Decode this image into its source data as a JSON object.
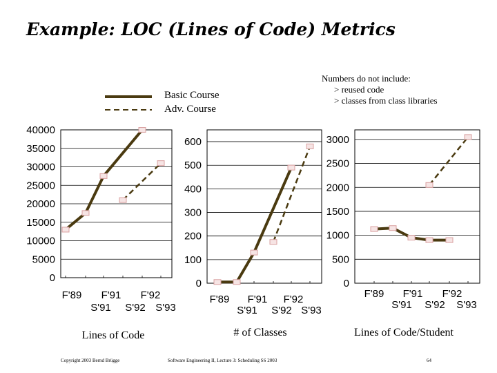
{
  "slide": {
    "title": "Example: LOC (Lines of Code) Metrics",
    "note": {
      "heading": "Numbers do not include:",
      "items": [
        "> reused code",
        "> classes from class libraries"
      ]
    },
    "legend": {
      "basic_label": "Basic Course",
      "adv_label": "Adv. Course"
    },
    "footer": {
      "left": "Copyright 2003 Bernd Brügge",
      "center": "Software Engineering II, Lecture 3: Scheduling SS 2003",
      "page": "64"
    }
  },
  "colors": {
    "series": "#4a3a10",
    "marker_stroke": "#d9a0a0",
    "marker_fill": "#f6e4e4",
    "grid": "#000000"
  },
  "chart_data": [
    {
      "type": "line",
      "title": "",
      "xlabel": "Lines of Code",
      "ylabel": "",
      "x_ticks_top": [
        "F'89",
        "F'91",
        "F'92"
      ],
      "x_ticks_bottom": [
        "S'91",
        "S'92",
        "S'93"
      ],
      "x_categories": [
        "F'89",
        "S'91",
        "F'91",
        "S'92",
        "F'92",
        "S'93"
      ],
      "y_ticks": [
        0,
        5000,
        10000,
        15000,
        20000,
        25000,
        30000,
        35000,
        40000
      ],
      "ylim": [
        0,
        40000
      ],
      "grid": true,
      "series": [
        {
          "name": "Basic Course",
          "style": "solid",
          "points": [
            [
              "F'89",
              13000
            ],
            [
              "S'91",
              17500
            ],
            [
              "F'91",
              27500
            ],
            [
              "F'92",
              40000
            ]
          ]
        },
        {
          "name": "Adv. Course",
          "style": "dashed",
          "points": [
            [
              "S'92",
              21000
            ],
            [
              "S'93",
              31000
            ]
          ]
        }
      ]
    },
    {
      "type": "line",
      "title": "",
      "xlabel": "# of Classes",
      "ylabel": "",
      "x_ticks_top": [
        "F'89",
        "F'91",
        "F'92"
      ],
      "x_ticks_bottom": [
        "S'91",
        "S'92",
        "S'93"
      ],
      "x_categories": [
        "F'89",
        "S'91",
        "F'91",
        "S'92",
        "F'92",
        "S'93"
      ],
      "y_ticks": [
        0,
        100,
        200,
        300,
        400,
        500,
        600
      ],
      "ylim": [
        0,
        650
      ],
      "grid": true,
      "series": [
        {
          "name": "Basic Course",
          "style": "solid",
          "points": [
            [
              "F'89",
              5
            ],
            [
              "S'91",
              5
            ],
            [
              "F'91",
              130
            ],
            [
              "F'92",
              490
            ]
          ]
        },
        {
          "name": "Adv. Course",
          "style": "dashed",
          "points": [
            [
              "S'92",
              175
            ],
            [
              "S'93",
              580
            ]
          ]
        }
      ]
    },
    {
      "type": "line",
      "title": "",
      "xlabel": "Lines of Code/Student",
      "ylabel": "",
      "x_ticks_top": [
        "F'89",
        "F'91",
        "F'92"
      ],
      "x_ticks_bottom": [
        "S'91",
        "S'92",
        "S'93"
      ],
      "x_categories": [
        "F'89",
        "S'91",
        "F'91",
        "S'92",
        "F'92",
        "S'93"
      ],
      "y_ticks": [
        0,
        500,
        1000,
        1500,
        2000,
        2500,
        3000
      ],
      "ylim": [
        0,
        3200
      ],
      "grid": true,
      "series": [
        {
          "name": "Basic Course",
          "style": "solid",
          "points": [
            [
              "F'89",
              1130
            ],
            [
              "S'91",
              1150
            ],
            [
              "F'91",
              950
            ],
            [
              "S'92",
              900
            ],
            [
              "F'92",
              900
            ]
          ]
        },
        {
          "name": "Adv. Course",
          "style": "dashed",
          "points": [
            [
              "S'92",
              2050
            ],
            [
              "S'93",
              3050
            ]
          ]
        }
      ]
    }
  ]
}
